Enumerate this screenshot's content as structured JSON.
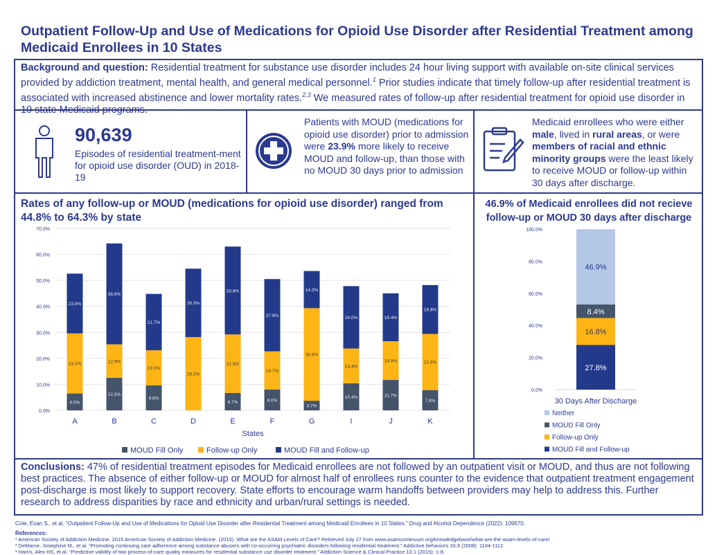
{
  "title": "Outpatient Follow-Up and Use of Medications for Opioid Use Disorder after Residential Treatment among Medicaid Enrollees in 10 States",
  "background": {
    "label": "Background and question:",
    "text": " Residential treatment for substance use disorder includes 24 hour living support with available on-site clinical services provided by addiction treatment, mental health, and general medical personnel.",
    "sup1": "1",
    "text2": " Prior studies indicate that timely follow-up after residential treatment is associated with increased abstinence and lower mortality rates.",
    "sup2": "2,3",
    "text3": " We measured rates of follow-up after residential treatment for opioid use disorder in 10 state Medicaid programs."
  },
  "stat1": {
    "number": "90,639",
    "text": "Episodes of residential treatment-ment for opioid use disorder (OUD) in 2018-19"
  },
  "stat2": {
    "pre": "Patients with MOUD (medications for opioid use disorder) prior to admission were ",
    "bold": "23.9%",
    "post": " more likely to receive MOUD and follow-up, than those with no MOUD 30 days prior to admission"
  },
  "stat3": {
    "t1": "Medicaid enrollees who were either ",
    "b1": "male",
    "t2": ", lived in ",
    "b2": "rural areas",
    "t3": ", or were ",
    "b3": "members of racial and ethnic minority groups",
    "t4": " were the least likely to receive MOUD or follow-up within 30 days after discharge."
  },
  "colors": {
    "moud_fill_only": "#44546a",
    "follow_up_only": "#fdb515",
    "moud_and_follow_up": "#233a8b",
    "neither": "#b4c7e7",
    "brand": "#2b3990"
  },
  "chart_data": [
    {
      "type": "bar",
      "stacked": true,
      "title": "Rates of any follow-up or MOUD (medications for opioid use disorder) ranged from 44.8% to 64.3% by state",
      "xlabel": "States",
      "ylabel": "",
      "ylim": [
        0,
        70
      ],
      "yticks": [
        "0.0%",
        "10.0%",
        "20.0%",
        "30.0%",
        "40.0%",
        "50.0%",
        "60.0%",
        "70.0%"
      ],
      "grid": true,
      "legend": "bottom",
      "categories": [
        "A",
        "B",
        "C",
        "D",
        "E",
        "F",
        "G",
        "I",
        "J",
        "K"
      ],
      "series": [
        {
          "name": "MOUD Fill Only",
          "values": [
            6.5,
            12.5,
            9.6,
            0.0,
            6.7,
            8.0,
            3.7,
            10.4,
            11.7,
            7.8
          ],
          "labels": [
            "6.5%",
            "12.5%",
            "9.6%",
            "0.0%",
            "6.7%",
            "8.0%",
            "3.7%",
            "10.4%",
            "11.7%",
            "7.8%"
          ]
        },
        {
          "name": "Follow-up Only",
          "values": [
            23.1,
            12.9,
            13.5,
            28.2,
            22.5,
            14.7,
            35.6,
            13.4,
            14.9,
            21.6
          ],
          "labels": [
            "23.1%",
            "12.9%",
            "13.5%",
            "28.2%",
            "22.5%",
            "14.7%",
            "35.6%",
            "13.4%",
            "14.9%",
            "21.6%"
          ]
        },
        {
          "name": "MOUD Fill and Follow-up",
          "values": [
            23.0,
            38.8,
            21.7,
            26.3,
            33.8,
            27.8,
            14.3,
            24.0,
            18.4,
            18.8
          ],
          "labels": [
            "23.0%",
            "38.8%",
            "21.7%",
            "26.3%",
            "33.8%",
            "27.8%",
            "14.3%",
            "24.0%",
            "18.4%",
            "18.8%"
          ]
        }
      ]
    },
    {
      "type": "bar",
      "stacked": true,
      "title": "46.9% of Medicaid enrollees did not recieve follow-up or MOUD 30 days after discharge",
      "ylim": [
        0,
        100
      ],
      "yticks": [
        "0.0%",
        "20.0%",
        "40.0%",
        "60.0%",
        "80.0%",
        "100.0%"
      ],
      "grid": false,
      "legend": "bottom",
      "categories": [
        "30 Days After Discharge"
      ],
      "series": [
        {
          "name": "MOUD Fill and Follow-up",
          "values": [
            27.8
          ],
          "labels": [
            "27.8%"
          ]
        },
        {
          "name": "Follow-up Only",
          "values": [
            16.8
          ],
          "labels": [
            "16.8%"
          ]
        },
        {
          "name": "MOUD Fill Only",
          "values": [
            8.4
          ],
          "labels": [
            "8.4%"
          ]
        },
        {
          "name": "Neither",
          "values": [
            46.9
          ],
          "labels": [
            "46.9%"
          ]
        }
      ],
      "legend_order": [
        "Neither",
        "MOUD Fill Only",
        "Follow-up Only",
        "MOUD Fill and Follow-up"
      ]
    }
  ],
  "conclusions": {
    "label": "Conclusions:",
    "text": " 47% of residential treatment episodes for Medicaid enrollees are not followed by an outpatient visit or MOUD, and thus are not following best practices. The absence of either follow-up or MOUD for almost half of enrollees runs counter to the evidence that outpatient treatment engagement post-discharge is most likely to support recovery. State efforts to encourage warm handoffs between providers may help to address this. Further research to address disparities by race and ethnicity and urban/rural settings is needed."
  },
  "citation": "Cole, Evan S., et al. “Outpatient Follow-Up and Use of Medications for Opioid Use Disorder after Residential Treatment among Medicaid Enrollees in 10 States.” Drug and Alcohol Dependence (2022): 109670.",
  "references": {
    "label": "References:",
    "items": [
      "¹ American Society of Addiction Medicine, 2015  American Society of Addiction Medicine. (2015). What are the ASAM Levels of Care? Retrieved July 27 from www.asamcontinuum.org/knowledgebase/what-are-the-asam-levels-of-care/",
      "² DeMarce, Josephine M., et al. “Promoting continuing care adherence among substance abusers with co-occurring psychiatric disorders following residential treatment.” Addictive behaviors 33.9 (2008): 1104-1112.",
      "³ Harris, Alex HS, et al. “Predictive validity of two process-of-care quality measures for residential substance use disorder treatment.” Addiction Science & Clinical Practice 10.1 (2015): 1-8."
    ]
  }
}
